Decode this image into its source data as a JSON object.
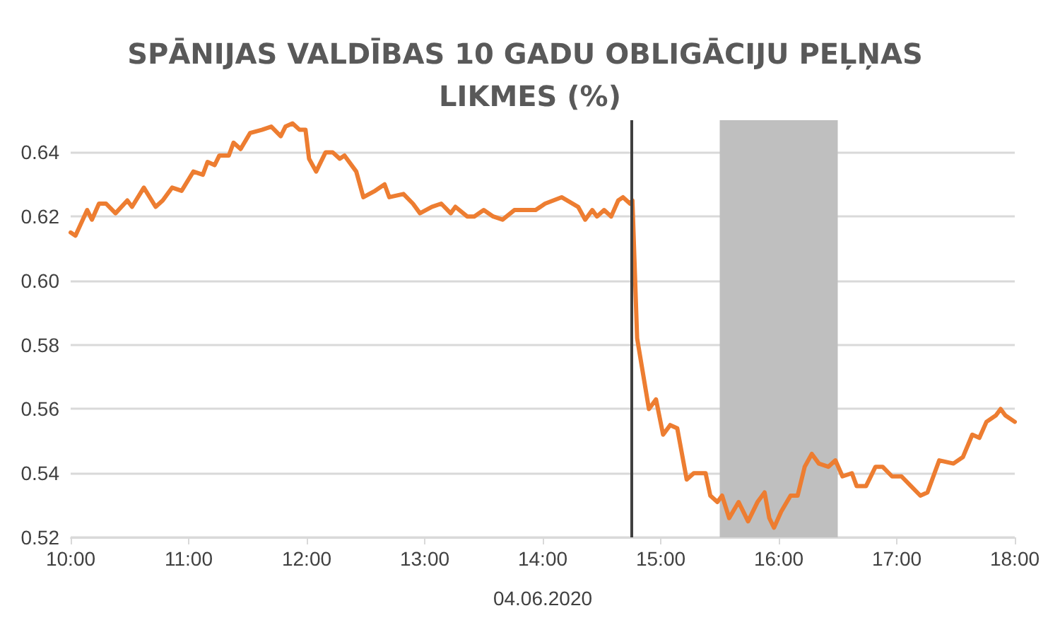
{
  "chart_data": {
    "type": "line",
    "title": "SPĀNIJAS VALDĪBAS 10 GADU OBLIGĀCIJU PEĻŅAS LIKMES (%)",
    "xlabel": "04.06.2020",
    "series": [
      {
        "color": "#ed7d31",
        "x": [
          10.0,
          10.04,
          10.14,
          10.18,
          10.24,
          10.3,
          10.38,
          10.48,
          10.52,
          10.62,
          10.72,
          10.78,
          10.86,
          10.94,
          11.04,
          11.12,
          11.16,
          11.22,
          11.26,
          11.34,
          11.38,
          11.44,
          11.52,
          11.62,
          11.7,
          11.78,
          11.82,
          11.88,
          11.94,
          11.99,
          12.02,
          12.08,
          12.16,
          12.22,
          12.28,
          12.32,
          12.42,
          12.48,
          12.58,
          12.66,
          12.7,
          12.82,
          12.9,
          12.96,
          13.06,
          13.14,
          13.22,
          13.26,
          13.36,
          13.42,
          13.5,
          13.58,
          13.66,
          13.76,
          13.86,
          13.94,
          14.02,
          14.16,
          14.3,
          14.36,
          14.42,
          14.46,
          14.52,
          14.58,
          14.64,
          14.68,
          14.74,
          14.76,
          14.8,
          14.9,
          14.96,
          15.02,
          15.08,
          15.14,
          15.22,
          15.28,
          15.38,
          15.42,
          15.48,
          15.52,
          15.58,
          15.66,
          15.74,
          15.82,
          15.88,
          15.92,
          15.96,
          16.02,
          16.1,
          16.16,
          16.22,
          16.28,
          16.34,
          16.42,
          16.48,
          16.54,
          16.62,
          16.66,
          16.74,
          16.82,
          16.88,
          16.96,
          17.04,
          17.12,
          17.2,
          17.26,
          17.36,
          17.48,
          17.56,
          17.64,
          17.7,
          17.76,
          17.84,
          17.88,
          17.92,
          18.0
        ],
        "values": [
          0.615,
          0.614,
          0.622,
          0.619,
          0.624,
          0.624,
          0.621,
          0.625,
          0.623,
          0.629,
          0.623,
          0.625,
          0.629,
          0.628,
          0.634,
          0.633,
          0.637,
          0.636,
          0.639,
          0.639,
          0.643,
          0.641,
          0.646,
          0.647,
          0.648,
          0.645,
          0.648,
          0.649,
          0.647,
          0.647,
          0.638,
          0.634,
          0.64,
          0.64,
          0.638,
          0.639,
          0.634,
          0.626,
          0.628,
          0.63,
          0.626,
          0.627,
          0.624,
          0.621,
          0.623,
          0.624,
          0.621,
          0.623,
          0.62,
          0.62,
          0.622,
          0.62,
          0.619,
          0.622,
          0.622,
          0.622,
          0.624,
          0.626,
          0.623,
          0.619,
          0.622,
          0.62,
          0.622,
          0.62,
          0.625,
          0.626,
          0.624,
          0.625,
          0.582,
          0.56,
          0.563,
          0.552,
          0.555,
          0.554,
          0.538,
          0.54,
          0.54,
          0.533,
          0.531,
          0.533,
          0.526,
          0.531,
          0.525,
          0.531,
          0.534,
          0.526,
          0.523,
          0.528,
          0.533,
          0.533,
          0.542,
          0.546,
          0.543,
          0.542,
          0.544,
          0.539,
          0.54,
          0.536,
          0.536,
          0.542,
          0.542,
          0.539,
          0.539,
          0.536,
          0.533,
          0.534,
          0.544,
          0.543,
          0.545,
          0.552,
          0.551,
          0.556,
          0.558,
          0.56,
          0.558,
          0.556
        ]
      }
    ],
    "xlim": [
      10,
      18
    ],
    "xticks": [
      {
        "value": 10,
        "label": "10:00"
      },
      {
        "value": 11,
        "label": "11:00"
      },
      {
        "value": 12,
        "label": "12:00"
      },
      {
        "value": 13,
        "label": "13:00"
      },
      {
        "value": 14,
        "label": "14:00"
      },
      {
        "value": 15,
        "label": "15:00"
      },
      {
        "value": 16,
        "label": "16:00"
      },
      {
        "value": 17,
        "label": "17:00"
      },
      {
        "value": 18,
        "label": "18:00"
      }
    ],
    "ylim": [
      0.52,
      0.65
    ],
    "yticks": [
      {
        "value": 0.52,
        "label": "0.52"
      },
      {
        "value": 0.54,
        "label": "0.54"
      },
      {
        "value": 0.56,
        "label": "0.56"
      },
      {
        "value": 0.58,
        "label": "0.58"
      },
      {
        "value": 0.6,
        "label": "0.60"
      },
      {
        "value": 0.62,
        "label": "0.62"
      },
      {
        "value": 0.64,
        "label": "0.64"
      }
    ],
    "ref_lines": [
      {
        "axis": "x",
        "value": 14.75,
        "color": "#404040"
      }
    ],
    "bands": [
      {
        "axis": "x",
        "from": 15.5,
        "to": 16.5,
        "color": "#bfbfbf"
      }
    ],
    "grid": "y",
    "marker": "none",
    "line_style": "solid"
  }
}
